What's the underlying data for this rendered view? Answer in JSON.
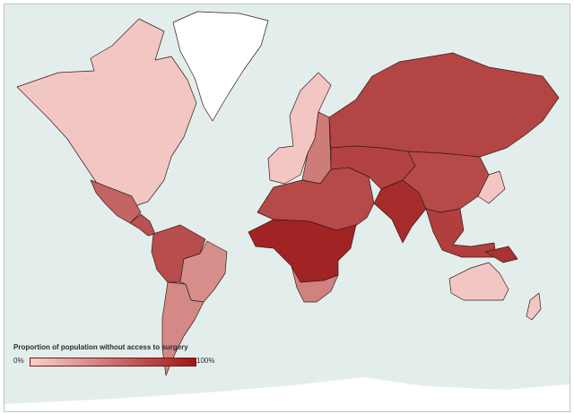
{
  "legend": {
    "title": "Proportion of population without access to surgery",
    "min_label": "0%",
    "max_label": "100%",
    "gradient_start": "#f6d0cc",
    "gradient_end": "#9c1616"
  },
  "colors": {
    "ocean": "#e3eeec",
    "ice": "#ffffff",
    "border": "#3a1a16"
  },
  "regions": [
    {
      "name": "North America",
      "proportion_without_access": 0.05
    },
    {
      "name": "Mexico",
      "proportion_without_access": 0.58
    },
    {
      "name": "Central America and Caribbean",
      "proportion_without_access": 0.68
    },
    {
      "name": "Northern South America",
      "proportion_without_access": 0.7
    },
    {
      "name": "Brazil",
      "proportion_without_access": 0.35
    },
    {
      "name": "Southern Cone",
      "proportion_without_access": 0.38
    },
    {
      "name": "Greenland",
      "proportion_without_access": null
    },
    {
      "name": "Western Europe",
      "proportion_without_access": 0.05
    },
    {
      "name": "Eastern Europe",
      "proportion_without_access": 0.45
    },
    {
      "name": "Russia",
      "proportion_without_access": 0.75
    },
    {
      "name": "North Africa and Middle East",
      "proportion_without_access": 0.72
    },
    {
      "name": "Sub-Saharan Africa",
      "proportion_without_access": 0.93
    },
    {
      "name": "Southern Africa",
      "proportion_without_access": 0.42
    },
    {
      "name": "Central Asia",
      "proportion_without_access": 0.76
    },
    {
      "name": "South Asia",
      "proportion_without_access": 0.88
    },
    {
      "name": "China",
      "proportion_without_access": 0.72
    },
    {
      "name": "Southeast Asia",
      "proportion_without_access": 0.78
    },
    {
      "name": "Japan and South Korea",
      "proportion_without_access": 0.05
    },
    {
      "name": "Australia and New Zealand",
      "proportion_without_access": 0.05
    },
    {
      "name": "Papua New Guinea",
      "proportion_without_access": 0.85
    }
  ]
}
